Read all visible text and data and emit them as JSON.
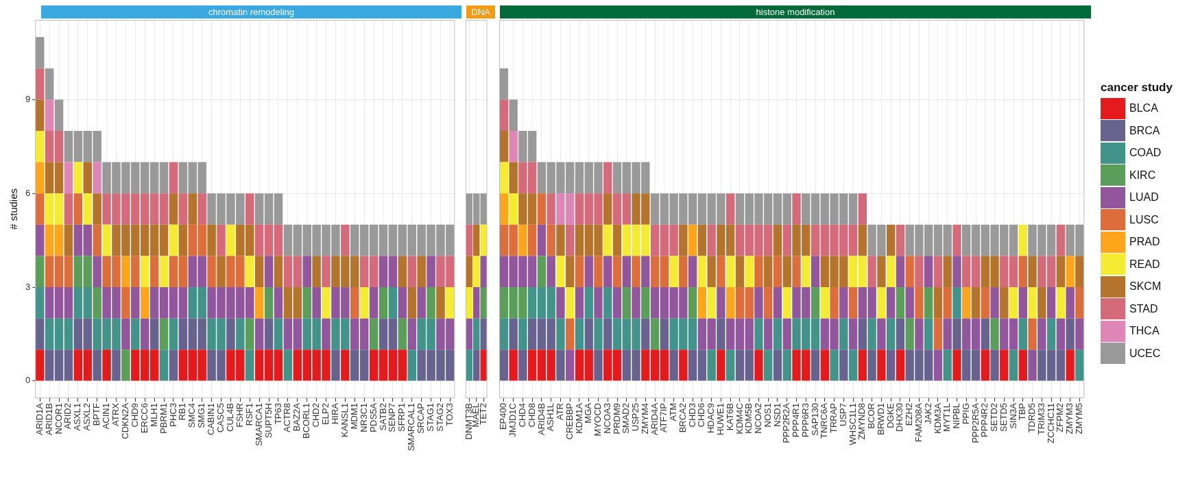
{
  "chart_data": [
    {
      "type": "bar",
      "title": "chromatin remodeling",
      "ylabel": "# studies",
      "stacked": true,
      "grid": true,
      "legend": false,
      "ylim": [
        -0.55,
        11.55
      ],
      "yticks": [
        0,
        3,
        6,
        9
      ],
      "categories": [
        "ARID1A",
        "ARID1B",
        "NCOR1",
        "ARID2",
        "ASXL1",
        "ASXL2",
        "BPTF",
        "ACIN1",
        "ATRX",
        "CDKN2A",
        "CHD9",
        "ERCC6",
        "MLH1",
        "PBRM1",
        "PHC3",
        "RB1",
        "SMC4",
        "SMG1",
        "CABIN1",
        "CASC5",
        "CUL4B",
        "FSHR",
        "RSF1",
        "SMARCA1",
        "SUPT5H",
        "TP63",
        "ACTR8",
        "BAZ2A",
        "BCORL1",
        "CHD2",
        "ELP2",
        "HIRA",
        "KANSL1",
        "MDM1",
        "NR3C1",
        "PDS5A",
        "SATB2",
        "SENP7",
        "SFRP1",
        "SMARCAL1",
        "SRCAP",
        "STAG1",
        "STAG2",
        "TOX3"
      ],
      "series": [
        {
          "color": "#e41a1c",
          "values": [
            1,
            0,
            0,
            0,
            1,
            1,
            0,
            1,
            0,
            0,
            1,
            1,
            1,
            0,
            0,
            1,
            1,
            1,
            0,
            0,
            1,
            1,
            0,
            1,
            1,
            1,
            0,
            1,
            1,
            1,
            1,
            0,
            1,
            0,
            0,
            1,
            1,
            1,
            1,
            0,
            0,
            0,
            0,
            0
          ]
        },
        {
          "color": "#67638e",
          "values": [
            1,
            1,
            1,
            1,
            1,
            1,
            1,
            0,
            1,
            0,
            0,
            0,
            1,
            0,
            1,
            1,
            1,
            1,
            1,
            1,
            1,
            0,
            0,
            0,
            1,
            0,
            0,
            0,
            0,
            0,
            0,
            1,
            0,
            1,
            1,
            0,
            1,
            1,
            0,
            0,
            1,
            1,
            1,
            1
          ]
        },
        {
          "color": "#42938a",
          "values": [
            1,
            1,
            1,
            1,
            1,
            1,
            1,
            1,
            1,
            0,
            1,
            0,
            0,
            1,
            1,
            0,
            1,
            1,
            1,
            1,
            0,
            1,
            1,
            0,
            0,
            1,
            1,
            0,
            1,
            1,
            0,
            1,
            1,
            0,
            0,
            0,
            0,
            1,
            0,
            1,
            1,
            1,
            0,
            0
          ]
        },
        {
          "color": "#5a9e5a",
          "values": [
            1,
            0,
            0,
            0,
            1,
            1,
            1,
            0,
            0,
            1,
            0,
            0,
            0,
            1,
            0,
            0,
            0,
            0,
            0,
            0,
            0,
            0,
            1,
            0,
            1,
            0,
            0,
            0,
            1,
            0,
            0,
            0,
            0,
            0,
            0,
            1,
            1,
            0,
            1,
            0,
            0,
            1,
            0,
            0
          ]
        },
        {
          "color": "#91569b",
          "values": [
            1,
            1,
            1,
            1,
            1,
            1,
            1,
            1,
            1,
            1,
            1,
            1,
            1,
            1,
            1,
            1,
            1,
            1,
            1,
            1,
            1,
            1,
            1,
            1,
            1,
            1,
            1,
            1,
            1,
            1,
            1,
            1,
            1,
            1,
            1,
            1,
            1,
            1,
            1,
            1,
            1,
            1,
            1,
            1
          ]
        },
        {
          "color": "#dd6e3c",
          "values": [
            1,
            1,
            1,
            1,
            1,
            0,
            1,
            1,
            1,
            1,
            1,
            0,
            1,
            0,
            1,
            1,
            1,
            1,
            1,
            0,
            1,
            1,
            0,
            0,
            0,
            0,
            0,
            0,
            0,
            0,
            0,
            0,
            0,
            1,
            0,
            0,
            0,
            0,
            0,
            0,
            0,
            0,
            0,
            0
          ]
        },
        {
          "color": "#fea51b",
          "values": [
            1,
            1,
            1,
            0,
            0,
            0,
            0,
            0,
            0,
            1,
            0,
            1,
            0,
            0,
            0,
            0,
            0,
            0,
            0,
            0,
            0,
            0,
            0,
            1,
            0,
            0,
            0,
            0,
            0,
            0,
            0,
            0,
            0,
            0,
            0,
            0,
            0,
            0,
            0,
            0,
            0,
            0,
            0,
            0
          ]
        },
        {
          "color": "#f4ec33",
          "values": [
            1,
            1,
            1,
            0,
            1,
            1,
            0,
            1,
            0,
            0,
            0,
            1,
            0,
            1,
            1,
            0,
            0,
            0,
            0,
            0,
            1,
            0,
            1,
            0,
            0,
            0,
            0,
            0,
            0,
            0,
            1,
            0,
            0,
            0,
            1,
            0,
            0,
            0,
            0,
            0,
            0,
            0,
            0,
            1
          ]
        },
        {
          "color": "#b4742b",
          "values": [
            1,
            1,
            1,
            1,
            0,
            1,
            1,
            0,
            1,
            1,
            1,
            1,
            1,
            1,
            1,
            1,
            1,
            0,
            1,
            1,
            0,
            1,
            1,
            1,
            0,
            1,
            1,
            1,
            0,
            1,
            0,
            1,
            1,
            1,
            0,
            0,
            0,
            0,
            1,
            1,
            1,
            0,
            1,
            0
          ]
        },
        {
          "color": "#d56b7a",
          "values": [
            1,
            1,
            1,
            1,
            0,
            0,
            0,
            1,
            1,
            1,
            1,
            1,
            1,
            1,
            1,
            1,
            0,
            1,
            0,
            1,
            0,
            0,
            1,
            1,
            1,
            1,
            1,
            1,
            0,
            0,
            1,
            0,
            1,
            0,
            1,
            1,
            0,
            0,
            0,
            1,
            0,
            0,
            1,
            1
          ]
        },
        {
          "color": "#de87b7",
          "values": [
            0,
            1,
            0,
            1,
            0,
            0,
            1,
            0,
            0,
            0,
            0,
            0,
            0,
            0,
            0,
            0,
            0,
            0,
            0,
            0,
            0,
            0,
            0,
            0,
            0,
            0,
            0,
            0,
            0,
            0,
            0,
            0,
            0,
            0,
            0,
            0,
            0,
            0,
            0,
            0,
            0,
            0,
            0,
            0
          ]
        },
        {
          "color": "#999999",
          "values": [
            1,
            1,
            1,
            1,
            1,
            1,
            1,
            1,
            1,
            1,
            1,
            1,
            1,
            1,
            0,
            1,
            1,
            1,
            1,
            1,
            1,
            1,
            0,
            1,
            1,
            1,
            1,
            1,
            1,
            1,
            1,
            1,
            0,
            1,
            1,
            1,
            1,
            1,
            1,
            1,
            1,
            1,
            1,
            1
          ]
        }
      ]
    },
    {
      "type": "bar",
      "title": "DNA",
      "stacked": true,
      "grid": true,
      "legend": false,
      "tick_labels": "x",
      "ylim": [
        -0.55,
        11.55
      ],
      "yticks": [
        0,
        3,
        6,
        9
      ],
      "categories": [
        "DNMT3B",
        "MAEL",
        "TET2"
      ],
      "series": [
        {
          "color": "#e41a1c",
          "values": [
            0,
            0,
            1
          ]
        },
        {
          "color": "#67638e",
          "values": [
            0,
            1,
            1
          ]
        },
        {
          "color": "#42938a",
          "values": [
            1,
            1,
            0
          ]
        },
        {
          "color": "#5a9e5a",
          "values": [
            0,
            0,
            1
          ]
        },
        {
          "color": "#91569b",
          "values": [
            1,
            1,
            1
          ]
        },
        {
          "color": "#dd6e3c",
          "values": [
            0,
            0,
            0
          ]
        },
        {
          "color": "#fea51b",
          "values": [
            0,
            0,
            0
          ]
        },
        {
          "color": "#f4ec33",
          "values": [
            1,
            1,
            1
          ]
        },
        {
          "color": "#b4742b",
          "values": [
            1,
            1,
            0
          ]
        },
        {
          "color": "#d56b7a",
          "values": [
            1,
            0,
            0
          ]
        },
        {
          "color": "#de87b7",
          "values": [
            0,
            0,
            0
          ]
        },
        {
          "color": "#999999",
          "values": [
            1,
            1,
            1
          ]
        }
      ]
    },
    {
      "type": "bar",
      "title": "histone modification",
      "stacked": true,
      "grid": true,
      "legend": "right",
      "legend_title": "cancer study",
      "tick_labels": "x",
      "ylim": [
        -0.55,
        11.55
      ],
      "yticks": [
        0,
        3,
        6,
        9
      ],
      "categories": [
        "EP400",
        "JMJD1C",
        "CHD4",
        "CHD8",
        "ARID4B",
        "ASH1L",
        "ATR",
        "CREBBP",
        "KDM1A",
        "MGA",
        "MYOCD",
        "NCOA3",
        "PRDM9",
        "SMAD2",
        "USP25",
        "ZMYM4",
        "ARID4A",
        "ATF7IP",
        "ATM",
        "BRCA2",
        "CHD3",
        "CHD6",
        "HDAC9",
        "HUWE1",
        "KAT6B",
        "KDM4C",
        "KDM5B",
        "NCOA2",
        "NOS1",
        "NSD1",
        "PPP2R2A",
        "PPP4R1",
        "PPP6R3",
        "SAP130",
        "TNRC6A",
        "TRRAP",
        "USP7",
        "WHSC1L1",
        "ZMYND8",
        "BCOR",
        "BRWD1",
        "DGKE",
        "DHX30",
        "EZH2",
        "FAM208A",
        "JAK2",
        "KDM3A",
        "MYT1L",
        "NIPBL",
        "PPIG",
        "PPP2R5A",
        "PPP4R2",
        "SETD2",
        "SETD5",
        "SIN3A",
        "TBP",
        "TDRD5",
        "TRIM33",
        "ZCCHC11",
        "ZFPM2",
        "ZMYM3",
        "ZMYM5"
      ],
      "series": [
        {
          "name": "BLCA",
          "color": "#e41a1c",
          "values": [
            0,
            1,
            0,
            1,
            1,
            1,
            0,
            0,
            1,
            1,
            0,
            1,
            1,
            0,
            0,
            1,
            1,
            1,
            0,
            1,
            0,
            0,
            0,
            1,
            0,
            0,
            0,
            1,
            0,
            0,
            0,
            1,
            1,
            0,
            1,
            0,
            0,
            0,
            1,
            0,
            1,
            0,
            1,
            0,
            0,
            0,
            0,
            0,
            1,
            0,
            0,
            1,
            0,
            1,
            0,
            1,
            0,
            0,
            0,
            0,
            1,
            0
          ]
        },
        {
          "name": "BRCA",
          "color": "#67638e",
          "values": [
            1,
            1,
            1,
            1,
            1,
            1,
            1,
            0,
            0,
            1,
            1,
            1,
            0,
            1,
            1,
            1,
            0,
            1,
            1,
            0,
            1,
            1,
            0,
            1,
            0,
            1,
            1,
            0,
            0,
            1,
            0,
            0,
            0,
            1,
            0,
            0,
            1,
            0,
            1,
            1,
            0,
            1,
            1,
            1,
            1,
            1,
            0,
            0,
            1,
            1,
            1,
            1,
            1,
            0,
            0,
            0,
            0,
            1,
            1,
            1,
            1,
            0
          ]
        },
        {
          "name": "COAD",
          "color": "#42938a",
          "values": [
            1,
            0,
            1,
            1,
            1,
            1,
            1,
            0,
            1,
            1,
            1,
            1,
            1,
            1,
            1,
            0,
            0,
            0,
            1,
            1,
            1,
            0,
            1,
            0,
            1,
            0,
            0,
            1,
            1,
            1,
            1,
            1,
            1,
            1,
            0,
            1,
            1,
            1,
            0,
            1,
            0,
            1,
            0,
            0,
            0,
            1,
            0,
            1,
            1,
            0,
            0,
            0,
            0,
            0,
            1,
            1,
            0,
            0,
            1,
            0,
            0,
            1
          ]
        },
        {
          "name": "KIRC",
          "color": "#5a9e5a",
          "values": [
            1,
            1,
            1,
            0,
            1,
            0,
            0,
            0,
            0,
            0,
            0,
            0,
            0,
            1,
            0,
            1,
            1,
            0,
            0,
            0,
            1,
            0,
            0,
            0,
            0,
            0,
            0,
            0,
            0,
            0,
            0,
            0,
            0,
            1,
            0,
            0,
            0,
            0,
            0,
            0,
            0,
            0,
            1,
            1,
            0,
            1,
            0,
            0,
            0,
            0,
            0,
            0,
            1,
            0,
            0,
            0,
            0,
            0,
            0,
            0,
            0,
            0
          ]
        },
        {
          "name": "LUAD",
          "color": "#91569b",
          "values": [
            1,
            1,
            1,
            1,
            1,
            1,
            1,
            1,
            1,
            1,
            1,
            1,
            1,
            1,
            1,
            1,
            1,
            1,
            1,
            1,
            1,
            1,
            1,
            1,
            1,
            1,
            1,
            1,
            1,
            1,
            1,
            1,
            1,
            1,
            1,
            1,
            1,
            1,
            1,
            1,
            1,
            1,
            1,
            1,
            1,
            1,
            1,
            1,
            1,
            1,
            1,
            0,
            1,
            1,
            1,
            1,
            1,
            1,
            1,
            1,
            1,
            1
          ]
        },
        {
          "name": "LUSC",
          "color": "#dd6e3c",
          "values": [
            1,
            1,
            0,
            1,
            1,
            1,
            0,
            1,
            1,
            0,
            1,
            0,
            1,
            0,
            1,
            0,
            1,
            1,
            0,
            1,
            0,
            0,
            0,
            1,
            0,
            1,
            1,
            1,
            1,
            1,
            0,
            1,
            0,
            0,
            0,
            1,
            0,
            1,
            0,
            0,
            0,
            0,
            0,
            1,
            1,
            0,
            1,
            1,
            0,
            0,
            0,
            1,
            0,
            0,
            0,
            1,
            1,
            0,
            0,
            0,
            0,
            1
          ]
        },
        {
          "name": "PRAD",
          "color": "#fea51b",
          "values": [
            1,
            0,
            1,
            0,
            0,
            0,
            0,
            0,
            0,
            0,
            0,
            0,
            0,
            0,
            0,
            0,
            0,
            0,
            0,
            0,
            1,
            1,
            0,
            0,
            1,
            0,
            0,
            0,
            0,
            0,
            0,
            0,
            0,
            0,
            0,
            0,
            0,
            0,
            0,
            0,
            0,
            0,
            0,
            0,
            0,
            0,
            0,
            0,
            0,
            1,
            0,
            0,
            0,
            0,
            0,
            0,
            0,
            0,
            0,
            0,
            1,
            0
          ]
        },
        {
          "name": "READ",
          "color": "#f4ec33",
          "values": [
            1,
            1,
            0,
            0,
            0,
            0,
            1,
            1,
            0,
            0,
            0,
            1,
            0,
            1,
            1,
            1,
            0,
            0,
            1,
            0,
            0,
            1,
            1,
            0,
            1,
            0,
            1,
            0,
            0,
            0,
            1,
            0,
            1,
            0,
            1,
            0,
            0,
            1,
            1,
            0,
            1,
            1,
            0,
            0,
            0,
            0,
            0,
            0,
            0,
            0,
            0,
            0,
            0,
            0,
            1,
            1,
            1,
            0,
            0,
            1,
            0,
            0
          ]
        },
        {
          "name": "SKCM",
          "color": "#b4742b",
          "values": [
            1,
            1,
            1,
            1,
            0,
            0,
            1,
            1,
            1,
            1,
            1,
            1,
            1,
            0,
            1,
            1,
            0,
            0,
            0,
            1,
            0,
            1,
            1,
            1,
            1,
            1,
            0,
            0,
            1,
            1,
            1,
            1,
            1,
            0,
            1,
            1,
            1,
            0,
            1,
            0,
            1,
            1,
            0,
            0,
            0,
            0,
            1,
            1,
            0,
            0,
            1,
            1,
            1,
            1,
            0,
            0,
            1,
            1,
            0,
            1,
            0,
            1
          ]
        },
        {
          "name": "STAD",
          "color": "#d56b7a",
          "values": [
            1,
            0,
            1,
            1,
            0,
            1,
            0,
            1,
            1,
            1,
            1,
            1,
            1,
            1,
            0,
            0,
            1,
            1,
            1,
            0,
            0,
            0,
            1,
            0,
            1,
            1,
            1,
            1,
            1,
            0,
            1,
            1,
            0,
            1,
            1,
            1,
            1,
            1,
            1,
            1,
            0,
            0,
            1,
            0,
            1,
            0,
            1,
            0,
            1,
            1,
            1,
            0,
            0,
            1,
            1,
            0,
            0,
            1,
            1,
            1,
            0,
            0
          ]
        },
        {
          "name": "THCA",
          "color": "#de87b7",
          "values": [
            0,
            1,
            0,
            0,
            0,
            0,
            1,
            1,
            0,
            0,
            0,
            0,
            0,
            0,
            0,
            0,
            0,
            0,
            0,
            0,
            0,
            0,
            0,
            0,
            0,
            0,
            0,
            0,
            0,
            0,
            0,
            0,
            0,
            0,
            0,
            0,
            0,
            0,
            0,
            0,
            0,
            0,
            0,
            0,
            0,
            0,
            0,
            0,
            0,
            0,
            0,
            0,
            0,
            0,
            0,
            0,
            0,
            0,
            0,
            0,
            0,
            0
          ]
        },
        {
          "name": "UCEC",
          "color": "#999999",
          "values": [
            1,
            1,
            1,
            1,
            1,
            1,
            1,
            1,
            1,
            1,
            1,
            0,
            1,
            1,
            1,
            1,
            1,
            1,
            1,
            1,
            1,
            1,
            1,
            1,
            0,
            1,
            1,
            1,
            1,
            1,
            1,
            0,
            1,
            1,
            1,
            1,
            1,
            1,
            0,
            1,
            1,
            0,
            0,
            1,
            1,
            1,
            1,
            1,
            0,
            1,
            1,
            1,
            1,
            1,
            1,
            0,
            1,
            1,
            1,
            0,
            1,
            1
          ]
        }
      ]
    }
  ]
}
